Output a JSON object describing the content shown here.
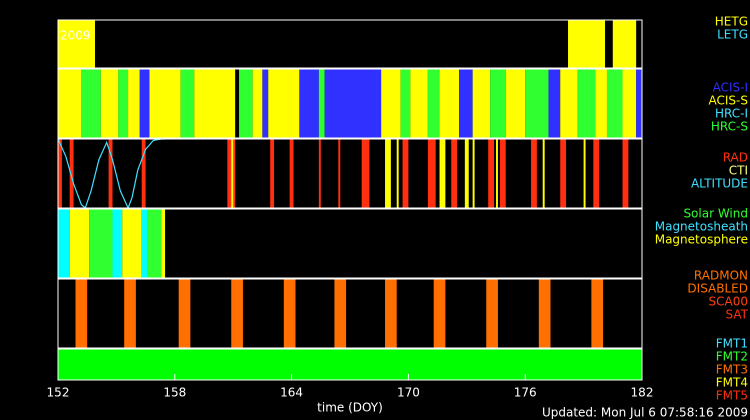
{
  "chart_data": {
    "type": "timeline",
    "year_label": "2009",
    "x_label": "time (DOY)",
    "updated": "Updated: Mon Jul  6 07:58:16 2009",
    "xlim": [
      152,
      182
    ],
    "xticks": [
      152,
      158,
      164,
      170,
      176,
      182
    ],
    "panels": [
      {
        "legend": [
          {
            "name": "HETG",
            "color": "#ffff00"
          },
          {
            "name": "LETG",
            "color": "#40e0ff"
          }
        ],
        "segments": [
          {
            "start": 152.0,
            "end": 153.9,
            "color": "#ffff00"
          },
          {
            "start": 178.2,
            "end": 180.1,
            "color": "#ffff00"
          },
          {
            "start": 180.5,
            "end": 181.7,
            "color": "#ffff00"
          }
        ]
      },
      {
        "legend": [
          {
            "name": "ACIS-I",
            "color": "#3030ff"
          },
          {
            "name": "ACIS-S",
            "color": "#ffff00"
          },
          {
            "name": "HRC-I",
            "color": "#40e0ff"
          },
          {
            "name": "HRC-S",
            "color": "#30ff30"
          }
        ],
        "segments": [
          {
            "start": 152.0,
            "end": 153.2,
            "color": "#ffff00"
          },
          {
            "start": 153.2,
            "end": 154.2,
            "color": "#30ff30"
          },
          {
            "start": 154.2,
            "end": 155.1,
            "color": "#ffff00"
          },
          {
            "start": 155.1,
            "end": 155.6,
            "color": "#30ff30"
          },
          {
            "start": 155.6,
            "end": 156.2,
            "color": "#ffff00"
          },
          {
            "start": 156.2,
            "end": 156.7,
            "color": "#3030ff"
          },
          {
            "start": 156.7,
            "end": 158.3,
            "color": "#ffff00"
          },
          {
            "start": 158.3,
            "end": 159.0,
            "color": "#30ff30"
          },
          {
            "start": 159.0,
            "end": 161.1,
            "color": "#ffff00"
          },
          {
            "start": 161.3,
            "end": 162.0,
            "color": "#30ff30"
          },
          {
            "start": 162.0,
            "end": 162.5,
            "color": "#ffff00"
          },
          {
            "start": 162.5,
            "end": 162.8,
            "color": "#3030ff"
          },
          {
            "start": 162.8,
            "end": 164.4,
            "color": "#ffff00"
          },
          {
            "start": 164.4,
            "end": 165.4,
            "color": "#3030ff"
          },
          {
            "start": 165.4,
            "end": 165.7,
            "color": "#30ff30"
          },
          {
            "start": 165.7,
            "end": 168.6,
            "color": "#3030ff"
          },
          {
            "start": 168.6,
            "end": 169.6,
            "color": "#ffff00"
          },
          {
            "start": 169.6,
            "end": 170.1,
            "color": "#30ff30"
          },
          {
            "start": 170.1,
            "end": 171.0,
            "color": "#ffff00"
          },
          {
            "start": 171.0,
            "end": 171.6,
            "color": "#30ff30"
          },
          {
            "start": 171.6,
            "end": 172.6,
            "color": "#ffff00"
          },
          {
            "start": 172.6,
            "end": 173.3,
            "color": "#3030ff"
          },
          {
            "start": 173.3,
            "end": 174.2,
            "color": "#ffff00"
          },
          {
            "start": 174.2,
            "end": 175.0,
            "color": "#30ff30"
          },
          {
            "start": 175.0,
            "end": 176.0,
            "color": "#ffff00"
          },
          {
            "start": 176.0,
            "end": 177.2,
            "color": "#30ff30"
          },
          {
            "start": 177.2,
            "end": 177.8,
            "color": "#3030ff"
          },
          {
            "start": 177.8,
            "end": 178.7,
            "color": "#ffff00"
          },
          {
            "start": 178.7,
            "end": 179.6,
            "color": "#30ff30"
          },
          {
            "start": 179.6,
            "end": 180.2,
            "color": "#ffff00"
          },
          {
            "start": 180.2,
            "end": 181.0,
            "color": "#30ff30"
          },
          {
            "start": 181.0,
            "end": 181.7,
            "color": "#ffff00"
          },
          {
            "start": 181.7,
            "end": 182.0,
            "color": "#3030ff"
          }
        ]
      },
      {
        "legend": [
          {
            "name": "RAD",
            "color": "#ff3010"
          },
          {
            "name": "CTI",
            "color": "#ffff80"
          },
          {
            "name": "ALTITUDE",
            "color": "#40e0ff"
          }
        ],
        "segments": [
          {
            "start": 152.0,
            "end": 152.2,
            "color": "#ff3010"
          },
          {
            "start": 152.6,
            "end": 152.8,
            "color": "#ff3010"
          },
          {
            "start": 154.6,
            "end": 154.8,
            "color": "#ff3010"
          },
          {
            "start": 156.3,
            "end": 156.5,
            "color": "#ff3010"
          },
          {
            "start": 160.7,
            "end": 161.1,
            "color": "#ff3010"
          },
          {
            "start": 162.9,
            "end": 163.1,
            "color": "#ff3010"
          },
          {
            "start": 163.9,
            "end": 164.1,
            "color": "#ff3010"
          },
          {
            "start": 165.4,
            "end": 165.5,
            "color": "#ff3010"
          },
          {
            "start": 166.4,
            "end": 166.5,
            "color": "#ff3010"
          },
          {
            "start": 167.6,
            "end": 168.0,
            "color": "#ff3010"
          },
          {
            "start": 169.7,
            "end": 170.0,
            "color": "#ff3010"
          },
          {
            "start": 171.0,
            "end": 171.4,
            "color": "#ff3010"
          },
          {
            "start": 172.2,
            "end": 172.5,
            "color": "#ff3010"
          },
          {
            "start": 174.1,
            "end": 174.4,
            "color": "#ff3010"
          },
          {
            "start": 174.7,
            "end": 175.0,
            "color": "#ff3010"
          },
          {
            "start": 176.3,
            "end": 176.6,
            "color": "#ff3010"
          },
          {
            "start": 177.8,
            "end": 178.1,
            "color": "#ff3010"
          },
          {
            "start": 179.5,
            "end": 179.8,
            "color": "#ff3010"
          },
          {
            "start": 181.0,
            "end": 181.3,
            "color": "#ff3010"
          },
          {
            "start": 160.9,
            "end": 161.0,
            "color": "#ffff00"
          },
          {
            "start": 168.8,
            "end": 169.1,
            "color": "#ffff00"
          },
          {
            "start": 169.4,
            "end": 169.5,
            "color": "#ffff00"
          },
          {
            "start": 171.6,
            "end": 171.9,
            "color": "#ffff00"
          },
          {
            "start": 172.9,
            "end": 173.1,
            "color": "#ffff00"
          },
          {
            "start": 173.3,
            "end": 173.4,
            "color": "#ffff00"
          },
          {
            "start": 174.5,
            "end": 174.6,
            "color": "#ffff00"
          },
          {
            "start": 176.9,
            "end": 177.0,
            "color": "#ffff00"
          },
          {
            "start": 179.0,
            "end": 179.1,
            "color": "#ffff00"
          }
        ],
        "curve": {
          "color": "#40e0ff",
          "ylim": [
            0,
            1
          ],
          "x": [
            152.0,
            152.4,
            152.8,
            153.2,
            153.4,
            153.7,
            154.1,
            154.5,
            154.8,
            155.2,
            155.6,
            155.8,
            156.1,
            156.5,
            156.9,
            157.3,
            157.5
          ],
          "values": [
            1,
            0.75,
            0.35,
            0.05,
            0,
            0.25,
            0.7,
            0.95,
            0.7,
            0.25,
            0,
            0.15,
            0.55,
            0.85,
            0.98,
            1,
            1
          ]
        }
      },
      {
        "legend": [
          {
            "name": "Solar Wind",
            "color": "#30ff30"
          },
          {
            "name": "Magnetosheath",
            "color": "#40e0ff"
          },
          {
            "name": "Magnetosphere",
            "color": "#ffff00"
          }
        ],
        "segments": [
          {
            "start": 152.0,
            "end": 152.6,
            "color": "#00ffff"
          },
          {
            "start": 152.6,
            "end": 153.6,
            "color": "#ffff00"
          },
          {
            "start": 153.6,
            "end": 154.8,
            "color": "#30ff30"
          },
          {
            "start": 154.8,
            "end": 155.3,
            "color": "#00ffff"
          },
          {
            "start": 155.3,
            "end": 156.3,
            "color": "#ffff00"
          },
          {
            "start": 156.3,
            "end": 156.6,
            "color": "#00ffff"
          },
          {
            "start": 156.6,
            "end": 157.3,
            "color": "#30ff30"
          },
          {
            "start": 157.3,
            "end": 157.5,
            "color": "#ffff00"
          }
        ]
      },
      {
        "legend": [
          {
            "name": "RADMON",
            "color": "#ff7000"
          },
          {
            "name": "DISABLED",
            "color": "#ff7000"
          },
          {
            "name": "SCA00",
            "color": "#ff4010"
          },
          {
            "name": "SAT",
            "color": "#ff3010"
          }
        ],
        "segments": [
          {
            "start": 152.9,
            "end": 153.5,
            "color": "#ff7000"
          },
          {
            "start": 155.4,
            "end": 156.0,
            "color": "#ff7000"
          },
          {
            "start": 158.2,
            "end": 158.8,
            "color": "#ff7000"
          },
          {
            "start": 160.9,
            "end": 161.5,
            "color": "#ff7000"
          },
          {
            "start": 163.6,
            "end": 164.2,
            "color": "#ff7000"
          },
          {
            "start": 166.2,
            "end": 166.8,
            "color": "#ff7000"
          },
          {
            "start": 168.8,
            "end": 169.4,
            "color": "#ff7000"
          },
          {
            "start": 171.3,
            "end": 171.9,
            "color": "#ff7000"
          },
          {
            "start": 174.0,
            "end": 174.6,
            "color": "#ff7000"
          },
          {
            "start": 176.7,
            "end": 177.3,
            "color": "#ff7000"
          },
          {
            "start": 179.4,
            "end": 180.0,
            "color": "#ff7000"
          }
        ]
      },
      {
        "legend": [
          {
            "name": "FMT1",
            "color": "#40e0ff"
          },
          {
            "name": "FMT2",
            "color": "#30ff30"
          },
          {
            "name": "FMT3",
            "color": "#ff7000"
          },
          {
            "name": "FMT4",
            "color": "#ffff00"
          },
          {
            "name": "FMT5",
            "color": "#ff3010"
          }
        ],
        "segments": [
          {
            "start": 152.0,
            "end": 182.0,
            "color": "#00ff00"
          }
        ]
      }
    ]
  }
}
